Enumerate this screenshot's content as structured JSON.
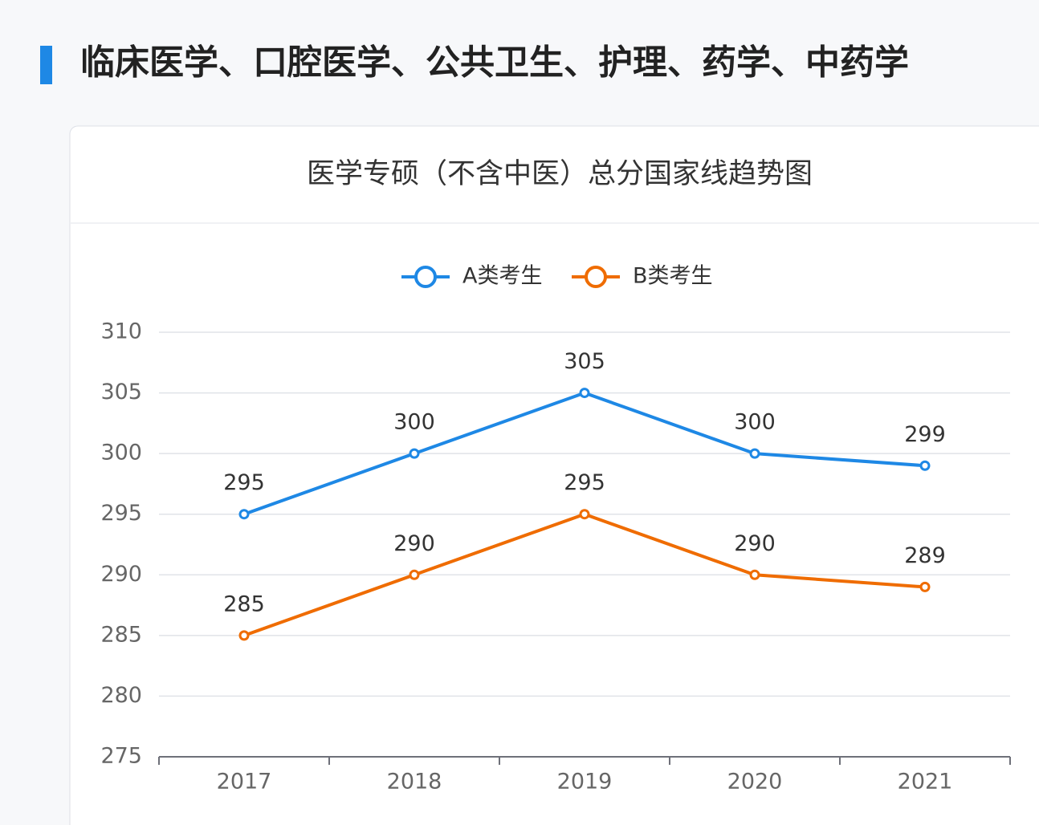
{
  "header": {
    "title": "临床医学、口腔医学、公共卫生、护理、药学、中药学"
  },
  "chart_data": {
    "type": "line",
    "title": "医学专硕（不含中医）总分国家线趋势图",
    "categories": [
      "2017",
      "2018",
      "2019",
      "2020",
      "2021"
    ],
    "series": [
      {
        "name": "A类考生",
        "color": "#1e88e5",
        "values": [
          295,
          300,
          305,
          300,
          299
        ]
      },
      {
        "name": "B类考生",
        "color": "#ef6c00",
        "values": [
          285,
          290,
          295,
          290,
          289
        ]
      }
    ],
    "ylim": [
      275,
      310
    ],
    "yticks": [
      275,
      280,
      285,
      290,
      295,
      300,
      305,
      310
    ],
    "grid": true,
    "legend": "top"
  }
}
